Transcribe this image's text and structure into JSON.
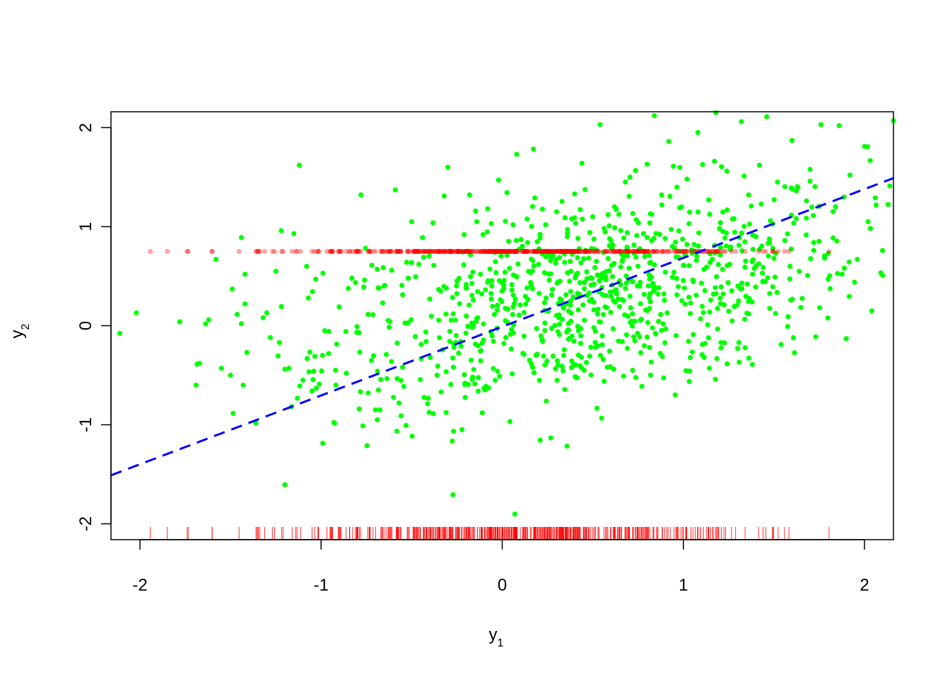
{
  "chart_data": {
    "type": "scatter",
    "xlabel": "y",
    "xlabel_subscript": "1",
    "ylabel": "y",
    "ylabel_subscript": "2",
    "xlim": [
      -2.16,
      2.16
    ],
    "ylim": [
      -2.16,
      2.16
    ],
    "x_ticks": [
      -2,
      -1,
      0,
      1,
      2
    ],
    "y_ticks": [
      -2,
      -1,
      0,
      1,
      2
    ],
    "x_tick_labels": [
      "-2",
      "-1",
      "0",
      "1",
      "2"
    ],
    "y_tick_labels": [
      "-2",
      "-1",
      "0",
      "1",
      "2"
    ],
    "grid": false,
    "colors": {
      "observed_points": "#00ff00",
      "imputed_points": "#ff0000",
      "rug": "#ff0000",
      "regression_line": "#0000ff"
    },
    "regression_line": {
      "style": "dashed",
      "points": [
        [
          -2.16,
          -1.51
        ],
        [
          2.16,
          1.49
        ]
      ]
    },
    "imputed_level": 0.75,
    "observed_points_sample": [
      [
        -2.02,
        0.13
      ],
      [
        -1.78,
        0.04
      ],
      [
        -1.69,
        -0.6
      ],
      [
        -1.62,
        0.06
      ],
      [
        -1.58,
        0.67
      ],
      [
        -1.55,
        -0.43
      ],
      [
        -1.5,
        -0.5
      ],
      [
        -1.49,
        0.37
      ],
      [
        -1.44,
        0.02
      ],
      [
        -1.44,
        0.89
      ],
      [
        -1.43,
        -0.6
      ],
      [
        -1.42,
        0.52
      ],
      [
        -1.42,
        0.22
      ],
      [
        -1.41,
        -0.27
      ],
      [
        -1.32,
        0.08
      ],
      [
        -1.3,
        0.13
      ],
      [
        -1.28,
        -0.12
      ],
      [
        -1.25,
        0.55
      ],
      [
        -1.23,
        -0.17
      ],
      [
        -1.22,
        0.96
      ],
      [
        -1.2,
        -0.44
      ],
      [
        -1.15,
        0.93
      ],
      [
        -1.12,
        1.62
      ],
      [
        -1.1,
        -0.55
      ],
      [
        -1.08,
        0.6
      ],
      [
        -1.07,
        0.28
      ],
      [
        -1.05,
        -0.66
      ],
      [
        -1.04,
        -0.46
      ],
      [
        -1.03,
        0.47
      ],
      [
        -1.01,
        -0.59
      ],
      [
        -0.99,
        0.53
      ],
      [
        -0.98,
        -0.05
      ],
      [
        -0.92,
        -0.45
      ],
      [
        -0.9,
        0.19
      ],
      [
        -0.86,
        -0.48
      ],
      [
        -0.83,
        0.48
      ],
      [
        -0.79,
        -0.07
      ],
      [
        -0.79,
        -0.84
      ],
      [
        -0.78,
        1.32
      ],
      [
        -0.76,
        0.46
      ],
      [
        -0.74,
        -0.68
      ],
      [
        -0.72,
        0.61
      ],
      [
        -0.7,
        -0.85
      ],
      [
        -0.69,
        -0.95
      ],
      [
        -0.68,
        0.38
      ],
      [
        -0.66,
        0.23
      ],
      [
        -0.64,
        -0.29
      ],
      [
        -0.62,
        0.04
      ],
      [
        -0.61,
        0.56
      ],
      [
        -0.59,
        1.37
      ],
      [
        -0.55,
        -0.42
      ],
      [
        -0.52,
        0.48
      ],
      [
        -0.5,
        1.05
      ],
      [
        -0.48,
        -0.11
      ],
      [
        -0.46,
        0.62
      ],
      [
        -0.44,
        0.89
      ],
      [
        -0.42,
        -0.16
      ],
      [
        -0.4,
        0.27
      ],
      [
        -0.36,
        -0.5
      ],
      [
        -0.34,
        0.35
      ],
      [
        -0.32,
        1.31
      ],
      [
        -0.3,
        1.6
      ],
      [
        -0.29,
        0.75
      ],
      [
        -0.27,
        0.12
      ],
      [
        -0.25,
        0.45
      ],
      [
        -0.23,
        -0.16
      ],
      [
        -0.21,
        0.92
      ],
      [
        -0.2,
        0.38
      ],
      [
        -0.18,
        1.32
      ],
      [
        -0.16,
        0.0
      ],
      [
        -0.14,
        1.05
      ],
      [
        -0.12,
        0.52
      ],
      [
        -0.11,
        -0.88
      ],
      [
        -0.1,
        -0.63
      ],
      [
        -0.08,
        1.18
      ],
      [
        -0.06,
        0.27
      ],
      [
        -0.04,
        0.74
      ],
      [
        -0.02,
        1.47
      ],
      [
        0.0,
        0.35
      ],
      [
        0.02,
        -0.12
      ],
      [
        0.04,
        0.58
      ],
      [
        0.06,
        1.02
      ],
      [
        0.08,
        1.73
      ],
      [
        0.1,
        0.21
      ],
      [
        0.12,
        -0.29
      ],
      [
        0.14,
        0.84
      ],
      [
        0.16,
        0.41
      ],
      [
        0.18,
        1.29
      ],
      [
        0.2,
        0.62
      ],
      [
        0.22,
        -0.14
      ],
      [
        0.24,
        1.02
      ],
      [
        0.26,
        0.46
      ],
      [
        0.28,
        0.71
      ],
      [
        0.3,
        1.15
      ],
      [
        0.32,
        0.27
      ],
      [
        0.34,
        -0.3
      ],
      [
        0.36,
        0.9
      ],
      [
        0.38,
        0.55
      ],
      [
        0.4,
        1.33
      ],
      [
        0.42,
        0.16
      ],
      [
        0.44,
        1.64
      ],
      [
        0.46,
        0.76
      ],
      [
        0.48,
        0.33
      ],
      [
        0.5,
        1.1
      ],
      [
        0.52,
        0.65
      ],
      [
        0.54,
        2.03
      ],
      [
        0.56,
        0.48
      ],
      [
        0.58,
        -0.42
      ],
      [
        0.6,
        0.86
      ],
      [
        0.62,
        1.2
      ],
      [
        0.64,
        0.27
      ],
      [
        0.66,
        0.72
      ],
      [
        0.68,
        1.45
      ],
      [
        0.7,
        0.58
      ],
      [
        0.72,
        -0.45
      ],
      [
        0.74,
        1.07
      ],
      [
        0.76,
        0.4
      ],
      [
        0.78,
        0.93
      ],
      [
        0.8,
        1.63
      ],
      [
        0.82,
        0.64
      ],
      [
        0.84,
        2.12
      ],
      [
        0.86,
        0.32
      ],
      [
        0.88,
        1.32
      ],
      [
        0.9,
        0.88
      ],
      [
        0.92,
        1.86
      ],
      [
        0.94,
        0.49
      ],
      [
        0.96,
        -0.1
      ],
      [
        0.98,
        1.19
      ],
      [
        1.0,
        0.61
      ],
      [
        1.02,
        1.48
      ],
      [
        1.04,
        0.23
      ],
      [
        1.06,
        0.82
      ],
      [
        1.08,
        1.95
      ],
      [
        1.1,
        0.43
      ],
      [
        1.12,
        -0.18
      ],
      [
        1.14,
        1.27
      ],
      [
        1.16,
        0.67
      ],
      [
        1.18,
        2.15
      ],
      [
        1.2,
        0.98
      ],
      [
        1.22,
        0.32
      ],
      [
        1.24,
        1.56
      ],
      [
        1.26,
        0.77
      ],
      [
        1.28,
        1.08
      ],
      [
        1.3,
        -0.23
      ],
      [
        1.32,
        2.06
      ],
      [
        1.34,
        0.59
      ],
      [
        1.36,
        1.32
      ],
      [
        1.38,
        0.24
      ],
      [
        1.4,
        0.9
      ],
      [
        1.42,
        1.62
      ],
      [
        1.44,
        0.45
      ],
      [
        1.46,
        2.11
      ],
      [
        1.48,
        1.06
      ],
      [
        1.5,
        0.68
      ],
      [
        1.52,
        1.45
      ],
      [
        1.54,
        -0.19
      ],
      [
        1.56,
        0.86
      ],
      [
        1.6,
        1.87
      ],
      [
        1.64,
        0.55
      ],
      [
        1.68,
        1.26
      ],
      [
        1.72,
        0.84
      ],
      [
        1.76,
        2.03
      ],
      [
        1.8,
        0.47
      ],
      [
        1.84,
        1.2
      ],
      [
        1.86,
        2.02
      ],
      [
        1.9,
        -0.13
      ],
      [
        1.92,
        1.52
      ],
      [
        1.96,
        0.67
      ],
      [
        2.0,
        1.81
      ],
      [
        2.02,
        1.05
      ],
      [
        2.04,
        0.15
      ],
      [
        2.06,
        1.29
      ],
      [
        2.1,
        0.76
      ],
      [
        2.14,
        1.41
      ],
      [
        2.16,
        2.07
      ]
    ],
    "observed_points_count": 1000,
    "imputed_points_count": 500
  }
}
